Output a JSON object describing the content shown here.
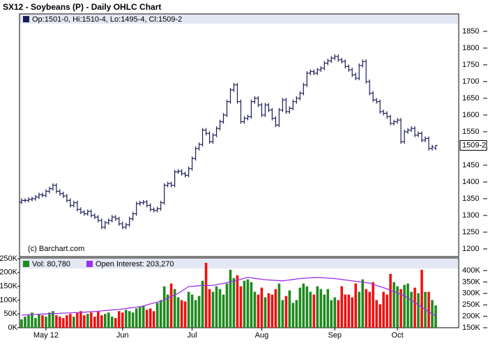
{
  "chart_data": [
    {
      "type": "ohlc",
      "title": "SX12 - Soybeans (P) - Daily OHLC Chart",
      "legend": "Op:1501-0, Hi:1510-4, Lo:1495-4, Cl:1509-2",
      "source": "(c) Barchart.com",
      "last_label": "1509-2",
      "color": "#1c1c55",
      "ylim": [
        1177,
        1902
      ],
      "yticks": [
        1200,
        1250,
        1300,
        1350,
        1400,
        1450,
        1500,
        1550,
        1600,
        1650,
        1700,
        1750,
        1800,
        1850
      ],
      "open": [
        1340,
        1345,
        1345,
        1348,
        1350,
        1355,
        1362,
        1360,
        1372,
        1380,
        1390,
        1372,
        1365,
        1358,
        1345,
        1330,
        1338,
        1318,
        1310,
        1305,
        1312,
        1300,
        1295,
        1285,
        1265,
        1278,
        1285,
        1295,
        1290,
        1275,
        1265,
        1272,
        1290,
        1305,
        1335,
        1338,
        1340,
        1330,
        1318,
        1315,
        1320,
        1338,
        1390,
        1395,
        1390,
        1430,
        1432,
        1425,
        1420,
        1440,
        1470,
        1500,
        1512,
        1555,
        1545,
        1520,
        1540,
        1560,
        1580,
        1600,
        1640,
        1675,
        1690,
        1640,
        1580,
        1590,
        1595,
        1640,
        1650,
        1630,
        1600,
        1630,
        1615,
        1590,
        1570,
        1615,
        1645,
        1610,
        1620,
        1640,
        1650,
        1665,
        1690,
        1725,
        1730,
        1725,
        1735,
        1740,
        1755,
        1762,
        1770,
        1775,
        1765,
        1760,
        1745,
        1735,
        1720,
        1710,
        1748,
        1760,
        1700,
        1665,
        1645,
        1640,
        1610,
        1605,
        1595,
        1575,
        1580,
        1585,
        1520,
        1550,
        1555,
        1560,
        1540,
        1545,
        1525,
        1530,
        1500,
        1501
      ],
      "high": [
        1351,
        1351,
        1354,
        1356,
        1361,
        1368,
        1368,
        1378,
        1386,
        1396,
        1396,
        1378,
        1371,
        1364,
        1351,
        1344,
        1344,
        1324,
        1316,
        1318,
        1318,
        1306,
        1301,
        1291,
        1284,
        1291,
        1301,
        1301,
        1296,
        1281,
        1278,
        1296,
        1311,
        1341,
        1344,
        1346,
        1346,
        1336,
        1324,
        1326,
        1344,
        1396,
        1401,
        1401,
        1436,
        1438,
        1438,
        1431,
        1446,
        1476,
        1506,
        1518,
        1561,
        1561,
        1551,
        1546,
        1566,
        1586,
        1606,
        1646,
        1681,
        1696,
        1696,
        1646,
        1596,
        1601,
        1646,
        1656,
        1656,
        1636,
        1636,
        1636,
        1621,
        1596,
        1621,
        1651,
        1651,
        1626,
        1646,
        1656,
        1671,
        1696,
        1731,
        1736,
        1736,
        1741,
        1746,
        1761,
        1768,
        1776,
        1781,
        1781,
        1771,
        1766,
        1751,
        1741,
        1726,
        1754,
        1766,
        1766,
        1706,
        1671,
        1651,
        1646,
        1616,
        1611,
        1601,
        1586,
        1591,
        1591,
        1556,
        1561,
        1566,
        1566,
        1551,
        1551,
        1536,
        1536,
        1511,
        1510.5
      ],
      "low": [
        1334,
        1339,
        1339,
        1342,
        1344,
        1349,
        1354,
        1354,
        1366,
        1374,
        1366,
        1359,
        1352,
        1339,
        1324,
        1324,
        1312,
        1304,
        1299,
        1299,
        1294,
        1289,
        1279,
        1259,
        1259,
        1272,
        1279,
        1284,
        1269,
        1259,
        1259,
        1266,
        1284,
        1299,
        1329,
        1332,
        1324,
        1312,
        1309,
        1309,
        1314,
        1332,
        1384,
        1384,
        1384,
        1424,
        1419,
        1414,
        1414,
        1434,
        1464,
        1494,
        1506,
        1539,
        1514,
        1514,
        1534,
        1554,
        1574,
        1594,
        1634,
        1669,
        1634,
        1574,
        1574,
        1584,
        1589,
        1634,
        1624,
        1594,
        1594,
        1609,
        1584,
        1564,
        1564,
        1609,
        1604,
        1604,
        1614,
        1634,
        1644,
        1659,
        1684,
        1719,
        1719,
        1719,
        1729,
        1734,
        1749,
        1756,
        1764,
        1759,
        1754,
        1739,
        1729,
        1714,
        1704,
        1704,
        1742,
        1694,
        1659,
        1639,
        1634,
        1604,
        1599,
        1589,
        1569,
        1569,
        1574,
        1514,
        1514,
        1544,
        1549,
        1534,
        1534,
        1519,
        1519,
        1494,
        1494,
        1495.5
      ],
      "close": [
        1345,
        1345,
        1348,
        1350,
        1355,
        1362,
        1360,
        1372,
        1380,
        1390,
        1372,
        1365,
        1358,
        1345,
        1330,
        1338,
        1318,
        1310,
        1305,
        1312,
        1300,
        1295,
        1285,
        1265,
        1278,
        1285,
        1295,
        1290,
        1275,
        1265,
        1272,
        1290,
        1305,
        1335,
        1338,
        1340,
        1330,
        1318,
        1315,
        1320,
        1338,
        1390,
        1395,
        1390,
        1430,
        1432,
        1425,
        1420,
        1440,
        1470,
        1500,
        1512,
        1555,
        1545,
        1520,
        1540,
        1560,
        1580,
        1600,
        1640,
        1675,
        1690,
        1640,
        1580,
        1590,
        1595,
        1640,
        1650,
        1630,
        1600,
        1630,
        1615,
        1590,
        1570,
        1615,
        1645,
        1610,
        1620,
        1640,
        1650,
        1665,
        1690,
        1725,
        1730,
        1725,
        1735,
        1740,
        1755,
        1762,
        1770,
        1775,
        1765,
        1760,
        1745,
        1735,
        1720,
        1710,
        1748,
        1760,
        1700,
        1665,
        1645,
        1640,
        1610,
        1605,
        1595,
        1575,
        1580,
        1585,
        1520,
        1550,
        1555,
        1560,
        1540,
        1545,
        1525,
        1530,
        1500,
        1505,
        1509.25
      ]
    },
    {
      "type": "volume",
      "categories": [
        null,
        null,
        null,
        null,
        null,
        null,
        null,
        "May 12",
        null,
        null,
        null,
        null,
        null,
        null,
        null,
        null,
        null,
        null,
        null,
        null,
        null,
        null,
        null,
        null,
        null,
        null,
        null,
        null,
        null,
        "Jun",
        null,
        null,
        null,
        null,
        null,
        null,
        null,
        null,
        null,
        null,
        null,
        null,
        null,
        null,
        null,
        null,
        null,
        null,
        null,
        "Jul",
        null,
        null,
        null,
        null,
        null,
        null,
        null,
        null,
        null,
        null,
        null,
        null,
        null,
        null,
        null,
        null,
        null,
        null,
        null,
        "Aug",
        null,
        null,
        null,
        null,
        null,
        null,
        null,
        null,
        null,
        null,
        null,
        null,
        null,
        null,
        null,
        null,
        null,
        null,
        null,
        null,
        "Sep",
        null,
        null,
        null,
        null,
        null,
        null,
        null,
        null,
        null,
        null,
        null,
        null,
        null,
        null,
        null,
        null,
        null,
        "Oct",
        null,
        null,
        null,
        null,
        null,
        null,
        null,
        null,
        null,
        null,
        null
      ],
      "ylim": [
        0,
        252500
      ],
      "yticks": [
        {
          "value": 0,
          "label": "0K"
        },
        {
          "value": 50000,
          "label": "50K"
        },
        {
          "value": 100000,
          "label": "100K"
        },
        {
          "value": 150000,
          "label": "150K"
        },
        {
          "value": 200000,
          "label": "200K"
        },
        {
          "value": 250000,
          "label": "250K"
        }
      ],
      "y2lim": [
        150000,
        455000
      ],
      "y2ticks": [
        {
          "value": 150000,
          "label": "150K"
        },
        {
          "value": 200000,
          "label": "200K"
        },
        {
          "value": 250000,
          "label": "250K"
        },
        {
          "value": 300000,
          "label": "300K"
        },
        {
          "value": 350000,
          "label": "350K"
        },
        {
          "value": 400000,
          "label": "400K"
        }
      ],
      "series": [
        {
          "name": "Vol: 80,780",
          "up_color": "#1f8a1f",
          "down_color": "#f01010",
          "values": [
            30000,
            40000,
            45000,
            55000,
            35000,
            50000,
            45000,
            40000,
            55000,
            60000,
            45000,
            40000,
            35000,
            45000,
            50000,
            40000,
            55000,
            60000,
            45000,
            50000,
            55000,
            40000,
            60000,
            45000,
            50000,
            55000,
            40000,
            35000,
            60000,
            55000,
            65000,
            60000,
            55000,
            70000,
            75000,
            80000,
            65000,
            70000,
            60000,
            90000,
            100000,
            150000,
            120000,
            160000,
            140000,
            110000,
            100000,
            95000,
            130000,
            120000,
            100000,
            115000,
            170000,
            235000,
            140000,
            130000,
            150000,
            140000,
            120000,
            160000,
            210000,
            180000,
            190000,
            150000,
            170000,
            175000,
            165000,
            130000,
            120000,
            145000,
            110000,
            125000,
            120000,
            140000,
            160000,
            100000,
            115000,
            135000,
            90000,
            100000,
            145000,
            160000,
            150000,
            130000,
            120000,
            150000,
            140000,
            120000,
            140000,
            100000,
            110000,
            100000,
            150000,
            120000,
            120000,
            110000,
            160000,
            130000,
            175000,
            140000,
            130000,
            165000,
            100000,
            85000,
            130000,
            120000,
            195000,
            165000,
            150000,
            140000,
            155000,
            160000,
            130000,
            145000,
            125000,
            210000,
            130000,
            130000,
            100000,
            80780
          ]
        },
        {
          "name": "Open Interest: 203,270",
          "color": "#9b30e8",
          "axis": "y2",
          "values": [
            205000,
            206000,
            207000,
            208000,
            208000,
            209000,
            210000,
            210000,
            211000,
            212000,
            212000,
            213000,
            214000,
            214000,
            215000,
            216000,
            216000,
            217000,
            218000,
            219000,
            220000,
            221000,
            222000,
            224000,
            225000,
            226000,
            228000,
            229000,
            230000,
            232000,
            234000,
            236000,
            238000,
            240000,
            242000,
            245000,
            250000,
            254000,
            258000,
            262000,
            265000,
            272000,
            280000,
            287000,
            294000,
            300000,
            310000,
            320000,
            330000,
            331000,
            332000,
            334000,
            335000,
            335000,
            335000,
            335000,
            338000,
            341000,
            344000,
            347000,
            350000,
            354000,
            358000,
            362000,
            366000,
            370000,
            368000,
            366000,
            364000,
            362000,
            360000,
            359000,
            358000,
            357000,
            356000,
            355000,
            357000,
            359000,
            361000,
            363000,
            365000,
            366000,
            367000,
            368000,
            369000,
            370000,
            369000,
            368000,
            367000,
            366000,
            365000,
            363000,
            361000,
            359000,
            357000,
            355000,
            353000,
            351000,
            349000,
            347000,
            345000,
            340000,
            335000,
            330000,
            325000,
            320000,
            314000,
            308000,
            302000,
            296000,
            290000,
            280000,
            270000,
            260000,
            250000,
            240000,
            230000,
            220000,
            210000,
            203270
          ]
        }
      ]
    }
  ]
}
